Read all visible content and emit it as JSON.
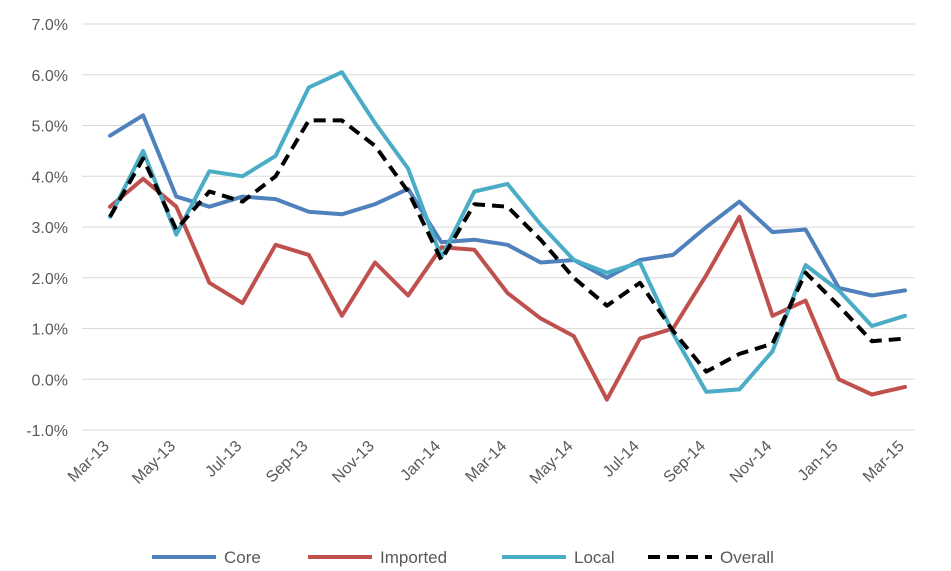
{
  "chart_data": {
    "type": "line",
    "x": [
      "Mar-13",
      "Apr-13",
      "May-13",
      "Jun-13",
      "Jul-13",
      "Aug-13",
      "Sep-13",
      "Oct-13",
      "Nov-13",
      "Dec-13",
      "Jan-14",
      "Feb-14",
      "Mar-14",
      "Apr-14",
      "May-14",
      "Jun-14",
      "Jul-14",
      "Aug-14",
      "Sep-14",
      "Oct-14",
      "Nov-14",
      "Dec-14",
      "Jan-15",
      "Feb-15",
      "Mar-15"
    ],
    "x_tick_labels": [
      "Mar-13",
      "May-13",
      "Jul-13",
      "Sep-13",
      "Nov-13",
      "Jan-14",
      "Mar-14",
      "May-14",
      "Jul-14",
      "Sep-14",
      "Nov-14",
      "Jan-15",
      "Mar-15"
    ],
    "ylim": [
      -1.0,
      7.0
    ],
    "y_ticks": [
      -1.0,
      0.0,
      1.0,
      2.0,
      3.0,
      4.0,
      5.0,
      6.0,
      7.0
    ],
    "y_tick_labels": [
      "-1.0%",
      "0.0%",
      "1.0%",
      "2.0%",
      "3.0%",
      "4.0%",
      "5.0%",
      "6.0%",
      "7.0%"
    ],
    "grid": "horizontal",
    "legend": "bottom",
    "series": [
      {
        "name": "Core",
        "color": "#4f81bd",
        "dash": "solid",
        "values": [
          4.8,
          5.2,
          3.6,
          3.4,
          3.6,
          3.55,
          3.3,
          3.25,
          3.45,
          3.75,
          2.7,
          2.75,
          2.65,
          2.3,
          2.35,
          2.0,
          2.35,
          2.45,
          3.0,
          3.5,
          2.9,
          2.95,
          1.8,
          1.65,
          1.75
        ]
      },
      {
        "name": "Imported",
        "color": "#c0504d",
        "dash": "solid",
        "values": [
          3.4,
          3.95,
          3.4,
          1.9,
          1.5,
          2.65,
          2.45,
          1.25,
          2.3,
          1.65,
          2.6,
          2.55,
          1.7,
          1.2,
          0.85,
          -0.4,
          0.8,
          1.0,
          2.05,
          3.2,
          1.25,
          1.55,
          0.0,
          -0.3,
          -0.15
        ]
      },
      {
        "name": "Local",
        "color": "#4bacc6",
        "dash": "solid",
        "values": [
          3.2,
          4.5,
          2.85,
          4.1,
          4.0,
          4.4,
          5.75,
          6.05,
          5.05,
          4.15,
          2.4,
          3.7,
          3.85,
          3.05,
          2.35,
          2.1,
          2.3,
          0.9,
          -0.25,
          -0.2,
          0.55,
          2.25,
          1.75,
          1.05,
          1.25
        ]
      },
      {
        "name": "Overall",
        "color": "#000000",
        "dash": "dashed",
        "values": [
          3.2,
          4.35,
          2.95,
          3.7,
          3.5,
          4.0,
          5.1,
          5.1,
          4.6,
          3.7,
          2.35,
          3.45,
          3.4,
          2.75,
          2.0,
          1.45,
          1.9,
          0.95,
          0.15,
          0.5,
          0.7,
          2.1,
          1.45,
          0.75,
          0.8
        ]
      }
    ]
  }
}
